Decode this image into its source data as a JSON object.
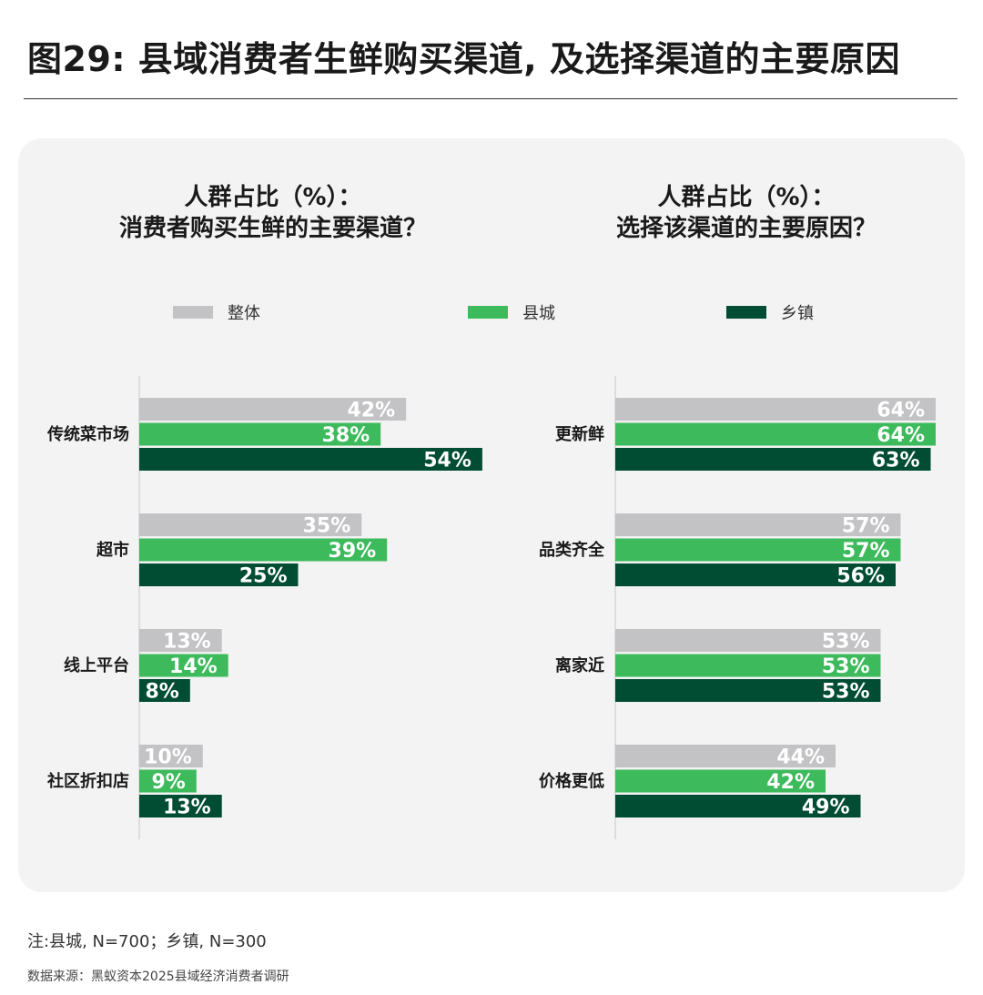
{
  "title": "图29: 县域消费者生鲜购买渠道, 及选择渠道的主要原因",
  "legend": [
    {
      "name": "整体",
      "color": "#c3c3c5"
    },
    {
      "name": "县城",
      "color": "#3dba5c"
    },
    {
      "name": "乡镇",
      "color": "#004d33"
    }
  ],
  "chart_data": [
    {
      "type": "bar",
      "orientation": "horizontal",
      "title_line1": "人群占比（%）：",
      "title_line2": "消费者购买生鲜的主要渠道？",
      "categories": [
        "传统菜市场",
        "超市",
        "线上平台",
        "社区折扣店"
      ],
      "series": [
        {
          "name": "整体",
          "values": [
            42,
            35,
            13,
            10
          ]
        },
        {
          "name": "县城",
          "values": [
            38,
            39,
            14,
            9
          ]
        },
        {
          "name": "乡镇",
          "values": [
            54,
            25,
            8,
            13
          ]
        }
      ],
      "value_suffix": "%",
      "grid": false
    },
    {
      "type": "bar",
      "orientation": "horizontal",
      "title_line1": "人群占比（%）：",
      "title_line2": "选择该渠道的主要原因？",
      "categories": [
        "更新鲜",
        "品类齐全",
        "离家近",
        "价格更低"
      ],
      "series": [
        {
          "name": "整体",
          "values": [
            64,
            57,
            53,
            44
          ]
        },
        {
          "name": "县城",
          "values": [
            64,
            57,
            53,
            42
          ]
        },
        {
          "name": "乡镇",
          "values": [
            63,
            56,
            53,
            49
          ]
        }
      ],
      "value_suffix": "%",
      "grid": false
    }
  ],
  "note": "注:县城, N=700；乡镇, N=300",
  "source": "数据来源：黑蚁资本2025县域经济消费者调研"
}
